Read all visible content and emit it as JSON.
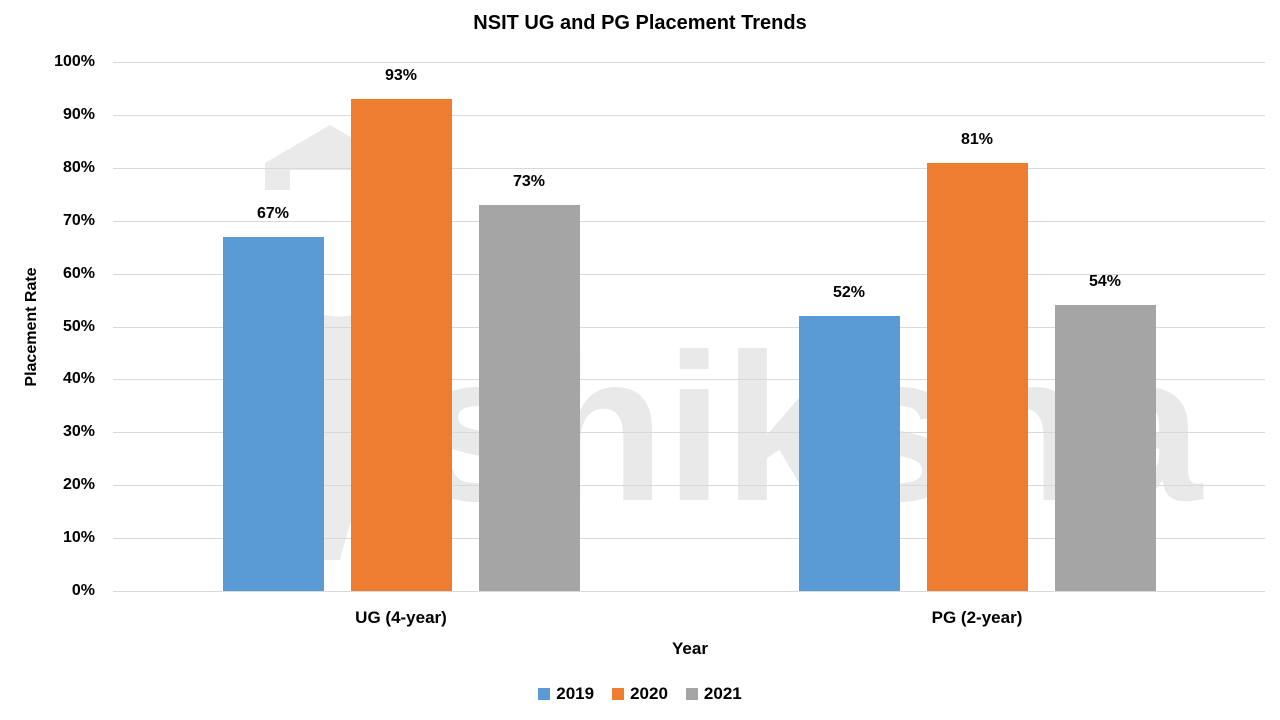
{
  "chart_data": {
    "type": "bar",
    "title": "NSIT UG and PG Placement Trends",
    "xlabel": "Year",
    "ylabel": "Placement Rate",
    "ylim": [
      0,
      100
    ],
    "yticks": [
      "0%",
      "10%",
      "20%",
      "30%",
      "40%",
      "50%",
      "60%",
      "70%",
      "80%",
      "90%",
      "100%"
    ],
    "grid": true,
    "legend_position": "bottom",
    "categories": [
      "UG (4-year)",
      "PG (2-year)"
    ],
    "series": [
      {
        "name": "2019",
        "color": "#5b9bd5",
        "values": [
          67,
          52
        ],
        "labels": [
          "67%",
          "52%"
        ]
      },
      {
        "name": "2020",
        "color": "#ed7d31",
        "values": [
          93,
          81
        ],
        "labels": [
          "93%",
          "81%"
        ]
      },
      {
        "name": "2021",
        "color": "#a5a5a5",
        "values": [
          73,
          54
        ],
        "labels": [
          "73%",
          "54%"
        ]
      }
    ],
    "watermark": "shiksha"
  }
}
